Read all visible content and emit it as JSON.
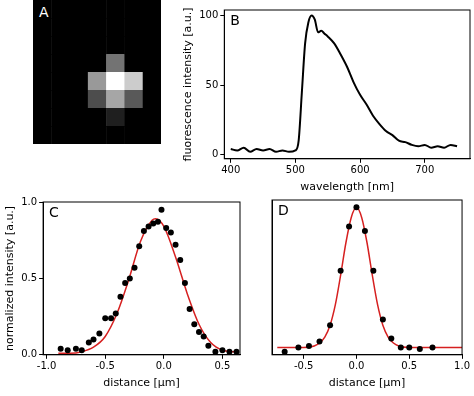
{
  "chart_data": [
    {
      "title": "A",
      "type": "heatmap",
      "tick_labels": false,
      "cells": [
        [
          0,
          0,
          0,
          0,
          0,
          0,
          0
        ],
        [
          0,
          0,
          0,
          0,
          0,
          0,
          0
        ],
        [
          0,
          0,
          0,
          0,
          0,
          0,
          0
        ],
        [
          0,
          0,
          0,
          0,
          0.45,
          0,
          0
        ],
        [
          0,
          0,
          0,
          0.6,
          1.0,
          0.8,
          0
        ],
        [
          0,
          0,
          0,
          0.3,
          0.65,
          0.35,
          0
        ],
        [
          0,
          0,
          0,
          0,
          0.12,
          0,
          0
        ],
        [
          0,
          0,
          0,
          0,
          0,
          0,
          0
        ]
      ]
    },
    {
      "title": "B",
      "type": "line",
      "color": "#000000",
      "line_style": "solid",
      "grid": false,
      "x_label": "wavelength [nm]",
      "y_label": "fluorescence intensity [a.u.]",
      "x": [
        400,
        410,
        420,
        430,
        440,
        450,
        460,
        470,
        480,
        490,
        500,
        505,
        510,
        515,
        520,
        525,
        530,
        535,
        540,
        545,
        550,
        560,
        570,
        580,
        590,
        600,
        610,
        620,
        630,
        640,
        650,
        660,
        670,
        680,
        690,
        700,
        710,
        720,
        730,
        740,
        750
      ],
      "values": [
        4,
        3,
        5,
        2,
        4,
        3,
        4,
        2,
        3,
        2,
        3,
        10,
        45,
        80,
        95,
        100,
        97,
        88,
        89,
        87,
        85,
        80,
        72,
        63,
        52,
        43,
        36,
        28,
        22,
        17,
        14,
        10,
        9,
        7,
        6,
        7,
        5,
        6,
        5,
        7,
        6
      ],
      "xlim": [
        390,
        770
      ],
      "xticks": [
        400,
        500,
        600,
        700
      ],
      "ylim": [
        -3,
        104
      ],
      "yticks": [
        0,
        50,
        100
      ]
    },
    {
      "title": "C",
      "type": "scatter",
      "grid": false,
      "x_label": "distance [µm]",
      "y_label": "normalized intensity [a.u.]",
      "series": [
        {
          "type": "scatter",
          "marker": "circle",
          "color": "#000000",
          "x": [
            -0.88,
            -0.82,
            -0.75,
            -0.7,
            -0.64,
            -0.6,
            -0.55,
            -0.5,
            -0.45,
            -0.41,
            -0.37,
            -0.33,
            -0.29,
            -0.25,
            -0.21,
            -0.17,
            -0.13,
            -0.09,
            -0.05,
            -0.02,
            0.02,
            0.06,
            0.1,
            0.14,
            0.18,
            0.22,
            0.26,
            0.3,
            0.34,
            0.38,
            0.44,
            0.5,
            0.56,
            0.62
          ],
          "values": [
            0.04,
            0.03,
            0.04,
            0.03,
            0.08,
            0.1,
            0.14,
            0.24,
            0.24,
            0.27,
            0.38,
            0.47,
            0.5,
            0.57,
            0.71,
            0.81,
            0.84,
            0.86,
            0.87,
            0.95,
            0.83,
            0.8,
            0.72,
            0.62,
            0.47,
            0.3,
            0.2,
            0.15,
            0.12,
            0.06,
            0.02,
            0.03,
            0.02,
            0.02
          ]
        },
        {
          "type": "line",
          "line_style": "solid",
          "color": "#d62020",
          "x": [
            -0.9,
            -0.8,
            -0.7,
            -0.6,
            -0.5,
            -0.4,
            -0.3,
            -0.2,
            -0.1,
            -0.07,
            0.0,
            0.1,
            0.2,
            0.3,
            0.4,
            0.5,
            0.6
          ],
          "values": [
            0.01,
            0.01,
            0.02,
            0.05,
            0.12,
            0.27,
            0.49,
            0.74,
            0.88,
            0.89,
            0.84,
            0.64,
            0.4,
            0.2,
            0.08,
            0.03,
            0.02
          ]
        }
      ],
      "xlim": [
        -1.03,
        0.65
      ],
      "xticks": [
        {
          "value": -1.0,
          "label": "-1.0"
        },
        {
          "value": -0.5,
          "label": "-0.5"
        },
        {
          "value": 0,
          "label": "0.0"
        },
        {
          "value": 0.5,
          "label": "0.5"
        }
      ],
      "ylim": [
        0,
        1.0
      ],
      "yticks": [
        {
          "value": 0,
          "label": "0.0"
        },
        {
          "value": 0.5,
          "label": "0.5"
        },
        {
          "value": 1.0,
          "label": "1.0"
        }
      ]
    },
    {
      "title": "D",
      "type": "scatter",
      "grid": false,
      "tick_labels": "x",
      "x_label": "distance [µm]",
      "series": [
        {
          "type": "scatter",
          "marker": "circle",
          "color": "#000000",
          "x": [
            -0.68,
            -0.55,
            -0.45,
            -0.35,
            -0.25,
            -0.15,
            -0.07,
            0.0,
            0.08,
            0.16,
            0.25,
            0.33,
            0.42,
            0.5,
            0.6,
            0.72
          ],
          "values": [
            0.02,
            0.05,
            0.06,
            0.09,
            0.2,
            0.57,
            0.87,
            1.0,
            0.84,
            0.57,
            0.24,
            0.11,
            0.05,
            0.05,
            0.04,
            0.05
          ]
        },
        {
          "type": "line",
          "line_style": "solid",
          "color": "#d62020",
          "x": [
            -0.75,
            -0.5,
            -0.4,
            -0.35,
            -0.3,
            -0.25,
            -0.2,
            -0.15,
            -0.1,
            -0.05,
            0,
            0.05,
            0.1,
            0.15,
            0.2,
            0.25,
            0.3,
            0.35,
            0.4,
            0.5,
            0.75,
            1.0
          ],
          "values": [
            0.05,
            0.05,
            0.06,
            0.08,
            0.12,
            0.2,
            0.34,
            0.54,
            0.76,
            0.93,
            1.0,
            0.93,
            0.76,
            0.54,
            0.34,
            0.2,
            0.12,
            0.08,
            0.06,
            0.05,
            0.05,
            0.05
          ]
        }
      ],
      "xlim": [
        -0.8,
        1.0
      ],
      "xticks": [
        {
          "value": -0.5,
          "label": "-0.5"
        },
        {
          "value": 0,
          "label": "0.0"
        },
        {
          "value": 0.5,
          "label": "0.5"
        },
        {
          "value": 1.0,
          "label": "1.0"
        }
      ],
      "ylim": [
        0,
        1.05
      ]
    }
  ]
}
